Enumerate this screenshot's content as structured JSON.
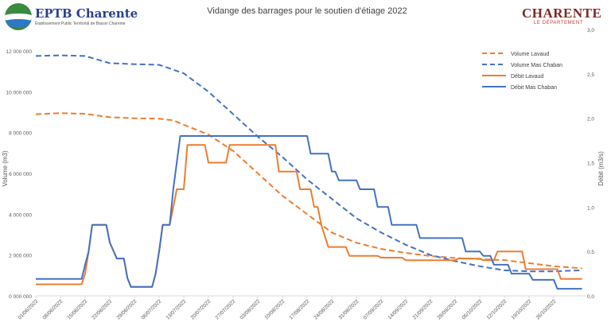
{
  "logos": {
    "left_name": "EPTB Charente",
    "left_sub": "Établissement Public Territorial de Bassin Charente",
    "right_name": "CHARENTE",
    "right_sub": "LE DÉPARTEMENT"
  },
  "chart_data": {
    "type": "line",
    "title": "Vidange des barrages pour le soutien d'étiage 2022",
    "ylabel": "Volume (m3)",
    "y2label": "Débit (m3/s)",
    "ylim": [
      0,
      12000000
    ],
    "y2lim": [
      0,
      3
    ],
    "yticks": [
      "0 000 000",
      "2 000 000",
      "4 000 000",
      "6 000 000",
      "8 000 000",
      "10 000 000",
      "12 000 000"
    ],
    "y2ticks": [
      "0,0",
      "0,5",
      "1,0",
      "1,5",
      "2,0",
      "2,5",
      "3,0"
    ],
    "x_start": "2022-06-01",
    "x_end": "2022-11-04",
    "xticks": [
      "01/06/2022",
      "08/06/2022",
      "15/06/2022",
      "22/06/2022",
      "29/06/2022",
      "06/07/2022",
      "13/07/2022",
      "20/07/2022",
      "27/07/2022",
      "03/08/2022",
      "10/08/2022",
      "17/08/2022",
      "24/08/2022",
      "31/08/2022",
      "07/09/2022",
      "14/09/2022",
      "21/09/2022",
      "28/09/2022",
      "05/10/2022",
      "12/10/2022",
      "19/10/2022",
      "26/10/2022"
    ],
    "legend_position": "top-right",
    "grid": false,
    "series": [
      {
        "name": "Volume Lavaud",
        "axis": "left",
        "style": "dashed",
        "color": "#ed7d31",
        "points": [
          [
            "2022-06-01",
            8900000
          ],
          [
            "2022-06-08",
            8950000
          ],
          [
            "2022-06-15",
            8920000
          ],
          [
            "2022-06-22",
            8750000
          ],
          [
            "2022-06-29",
            8700000
          ],
          [
            "2022-07-06",
            8680000
          ],
          [
            "2022-07-10",
            8600000
          ],
          [
            "2022-07-13",
            8380000
          ],
          [
            "2022-07-20",
            7900000
          ],
          [
            "2022-07-27",
            7100000
          ],
          [
            "2022-08-03",
            6000000
          ],
          [
            "2022-08-10",
            4900000
          ],
          [
            "2022-08-17",
            4000000
          ],
          [
            "2022-08-24",
            3100000
          ],
          [
            "2022-08-31",
            2600000
          ],
          [
            "2022-09-07",
            2300000
          ],
          [
            "2022-09-14",
            2100000
          ],
          [
            "2022-09-21",
            1950000
          ],
          [
            "2022-09-28",
            1850000
          ],
          [
            "2022-10-05",
            1800000
          ],
          [
            "2022-10-12",
            1750000
          ],
          [
            "2022-10-19",
            1600000
          ],
          [
            "2022-10-26",
            1450000
          ],
          [
            "2022-11-03",
            1350000
          ]
        ]
      },
      {
        "name": "Volume Mas Chaban",
        "axis": "left",
        "style": "dashed",
        "color": "#4472c4",
        "points": [
          [
            "2022-06-01",
            11750000
          ],
          [
            "2022-06-08",
            11780000
          ],
          [
            "2022-06-15",
            11750000
          ],
          [
            "2022-06-22",
            11400000
          ],
          [
            "2022-06-29",
            11350000
          ],
          [
            "2022-07-06",
            11320000
          ],
          [
            "2022-07-13",
            10900000
          ],
          [
            "2022-07-20",
            10000000
          ],
          [
            "2022-07-27",
            8900000
          ],
          [
            "2022-08-03",
            7800000
          ],
          [
            "2022-08-10",
            6800000
          ],
          [
            "2022-08-17",
            5700000
          ],
          [
            "2022-08-24",
            4750000
          ],
          [
            "2022-08-31",
            3800000
          ],
          [
            "2022-09-07",
            3100000
          ],
          [
            "2022-09-14",
            2500000
          ],
          [
            "2022-09-21",
            2000000
          ],
          [
            "2022-09-28",
            1700000
          ],
          [
            "2022-10-05",
            1450000
          ],
          [
            "2022-10-12",
            1250000
          ],
          [
            "2022-10-19",
            1200000
          ],
          [
            "2022-10-26",
            1200000
          ],
          [
            "2022-11-03",
            1250000
          ]
        ]
      },
      {
        "name": "Débit Lavaud",
        "axis": "right",
        "style": "solid",
        "color": "#ed7d31",
        "points": [
          [
            "2022-06-01",
            0.13
          ],
          [
            "2022-06-14",
            0.13
          ],
          [
            "2022-06-15",
            0.25
          ],
          [
            "2022-06-16",
            0.5
          ],
          [
            "2022-06-17",
            0.8
          ],
          [
            "2022-06-18",
            0.8
          ],
          [
            "2022-06-21",
            0.8
          ],
          [
            "2022-06-22",
            0.6
          ],
          [
            "2022-06-24",
            0.42
          ],
          [
            "2022-06-26",
            0.42
          ],
          [
            "2022-06-27",
            0.2
          ],
          [
            "2022-06-28",
            0.1
          ],
          [
            "2022-07-04",
            0.1
          ],
          [
            "2022-07-05",
            0.25
          ],
          [
            "2022-07-06",
            0.5
          ],
          [
            "2022-07-07",
            0.8
          ],
          [
            "2022-07-09",
            0.8
          ],
          [
            "2022-07-10",
            1.0
          ],
          [
            "2022-07-11",
            1.2
          ],
          [
            "2022-07-13",
            1.2
          ],
          [
            "2022-07-14",
            1.7
          ],
          [
            "2022-07-19",
            1.7
          ],
          [
            "2022-07-20",
            1.5
          ],
          [
            "2022-07-25",
            1.5
          ],
          [
            "2022-07-26",
            1.7
          ],
          [
            "2022-08-08",
            1.7
          ],
          [
            "2022-08-09",
            1.4
          ],
          [
            "2022-08-14",
            1.4
          ],
          [
            "2022-08-15",
            1.2
          ],
          [
            "2022-08-18",
            1.2
          ],
          [
            "2022-08-19",
            1.0
          ],
          [
            "2022-08-20",
            1.0
          ],
          [
            "2022-08-21",
            0.8
          ],
          [
            "2022-08-23",
            0.55
          ],
          [
            "2022-08-28",
            0.55
          ],
          [
            "2022-08-29",
            0.45
          ],
          [
            "2022-09-06",
            0.45
          ],
          [
            "2022-09-07",
            0.43
          ],
          [
            "2022-09-13",
            0.43
          ],
          [
            "2022-09-14",
            0.4
          ],
          [
            "2022-09-28",
            0.4
          ],
          [
            "2022-09-29",
            0.42
          ],
          [
            "2022-10-05",
            0.42
          ],
          [
            "2022-10-06",
            0.4
          ],
          [
            "2022-10-09",
            0.4
          ],
          [
            "2022-10-10",
            0.5
          ],
          [
            "2022-10-17",
            0.5
          ],
          [
            "2022-10-18",
            0.3
          ],
          [
            "2022-10-24",
            0.3
          ],
          [
            "2022-10-25",
            0.3
          ],
          [
            "2022-10-27",
            0.3
          ],
          [
            "2022-10-28",
            0.19
          ],
          [
            "2022-11-03",
            0.19
          ]
        ]
      },
      {
        "name": "Débit Mas Chaban",
        "axis": "right",
        "style": "solid",
        "color": "#4472c4",
        "points": [
          [
            "2022-06-01",
            0.19
          ],
          [
            "2022-06-14",
            0.19
          ],
          [
            "2022-06-15",
            0.35
          ],
          [
            "2022-06-16",
            0.5
          ],
          [
            "2022-06-17",
            0.8
          ],
          [
            "2022-06-21",
            0.8
          ],
          [
            "2022-06-22",
            0.6
          ],
          [
            "2022-06-24",
            0.42
          ],
          [
            "2022-06-26",
            0.42
          ],
          [
            "2022-06-27",
            0.2
          ],
          [
            "2022-06-28",
            0.1
          ],
          [
            "2022-07-04",
            0.1
          ],
          [
            "2022-07-05",
            0.25
          ],
          [
            "2022-07-06",
            0.5
          ],
          [
            "2022-07-07",
            0.8
          ],
          [
            "2022-07-09",
            0.8
          ],
          [
            "2022-07-10",
            1.2
          ],
          [
            "2022-07-11",
            1.5
          ],
          [
            "2022-07-12",
            1.8
          ],
          [
            "2022-08-17",
            1.8
          ],
          [
            "2022-08-18",
            1.6
          ],
          [
            "2022-08-23",
            1.6
          ],
          [
            "2022-08-24",
            1.4
          ],
          [
            "2022-08-25",
            1.4
          ],
          [
            "2022-08-26",
            1.3
          ],
          [
            "2022-08-31",
            1.3
          ],
          [
            "2022-09-01",
            1.2
          ],
          [
            "2022-09-05",
            1.2
          ],
          [
            "2022-09-06",
            1.0
          ],
          [
            "2022-09-09",
            1.0
          ],
          [
            "2022-09-10",
            0.8
          ],
          [
            "2022-09-17",
            0.8
          ],
          [
            "2022-09-18",
            0.65
          ],
          [
            "2022-09-30",
            0.65
          ],
          [
            "2022-10-01",
            0.5
          ],
          [
            "2022-10-05",
            0.5
          ],
          [
            "2022-10-06",
            0.45
          ],
          [
            "2022-10-08",
            0.45
          ],
          [
            "2022-10-09",
            0.35
          ],
          [
            "2022-10-13",
            0.35
          ],
          [
            "2022-10-14",
            0.25
          ],
          [
            "2022-10-19",
            0.25
          ],
          [
            "2022-10-20",
            0.18
          ],
          [
            "2022-10-26",
            0.18
          ],
          [
            "2022-10-27",
            0.08
          ],
          [
            "2022-11-03",
            0.08
          ]
        ]
      }
    ]
  }
}
